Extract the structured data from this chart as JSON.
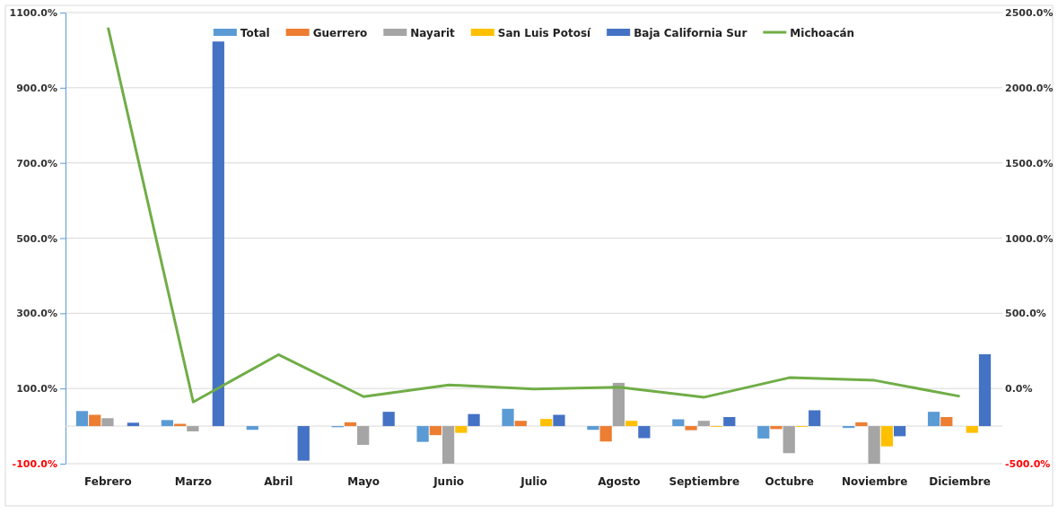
{
  "chart_data": {
    "type": "bar",
    "categories": [
      "Febrero",
      "Marzo",
      "Abril",
      "Mayo",
      "Junio",
      "Julio",
      "Agosto",
      "Septiembre",
      "Octubre",
      "Noviembre",
      "Diciembre"
    ],
    "series": [
      {
        "name": "Total",
        "color": "#5b9bd5",
        "values": [
          40,
          16,
          -10,
          -3,
          -42,
          46,
          -10,
          18,
          -33,
          -5,
          38
        ]
      },
      {
        "name": "Guerrero",
        "color": "#ed7d31",
        "values": [
          30,
          6,
          null,
          10,
          -24,
          14,
          -41,
          -11,
          -8,
          10,
          24
        ]
      },
      {
        "name": "Nayarit",
        "color": "#a5a5a5",
        "values": [
          21,
          -14,
          null,
          -50,
          -100,
          null,
          115,
          14,
          -72,
          -100,
          null
        ]
      },
      {
        "name": "San Luis Potosí",
        "color": "#ffc000",
        "values": [
          null,
          null,
          null,
          null,
          -18,
          19,
          14,
          -2,
          -2,
          -54,
          -18
        ]
      },
      {
        "name": "Baja California Sur",
        "color": "#4472c4",
        "values": [
          9,
          1023,
          -92,
          38,
          32,
          30,
          -32,
          24,
          42,
          -27,
          191
        ]
      },
      {
        "name": "Michoacán",
        "type": "line",
        "axis": "y2",
        "color": "#70ad47",
        "values": [
          2400,
          -90,
          225,
          -54,
          24,
          -4,
          8,
          -58,
          72,
          54,
          -52
        ]
      }
    ],
    "ylim": [
      -100,
      1100
    ],
    "yticks": [
      {
        "value": -100,
        "label": "-100.0%"
      },
      {
        "value": 100,
        "label": "100.0%"
      },
      {
        "value": 300,
        "label": "300.0%"
      },
      {
        "value": 500,
        "label": "500.0%"
      },
      {
        "value": 700,
        "label": "700.0%"
      },
      {
        "value": 900,
        "label": "900.0%"
      },
      {
        "value": 1100,
        "label": "1100.0%"
      }
    ],
    "y2lim": [
      -500,
      2500
    ],
    "y2ticks": [
      {
        "value": -500,
        "label": "-500.0%"
      },
      {
        "value": 0,
        "label": "0.0%"
      },
      {
        "value": 500,
        "label": "500.0%"
      },
      {
        "value": 1000,
        "label": "1000.0%"
      },
      {
        "value": 1500,
        "label": "1500.0%"
      },
      {
        "value": 2000,
        "label": "2000.0%"
      },
      {
        "value": 2500,
        "label": "2500.0%"
      }
    ],
    "grid": true,
    "legend": "top"
  }
}
